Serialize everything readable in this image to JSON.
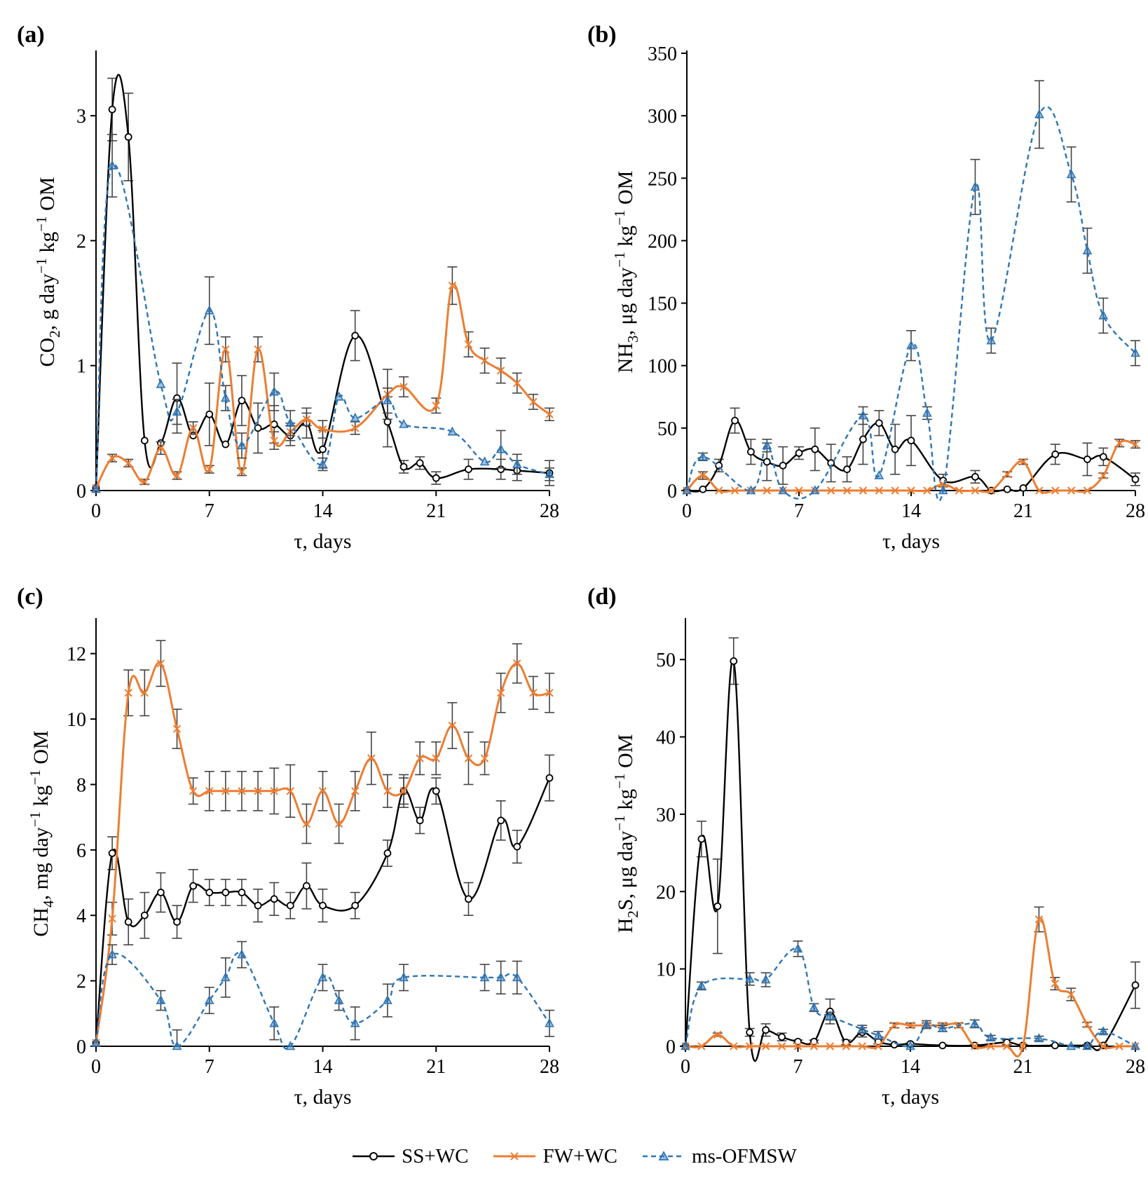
{
  "colors": {
    "ss_wc": "#000000",
    "fw_wc": "#ED7D31",
    "ms": "#2E75B6",
    "errbar": "#444444",
    "axis": "#000000"
  },
  "legend": [
    {
      "key": "ss",
      "label": "SS+WC"
    },
    {
      "key": "fw",
      "label": "FW+WC"
    },
    {
      "key": "ms",
      "label": "ms-OFMSW"
    }
  ],
  "chart_data": [
    {
      "type": "line",
      "panel": "(a)",
      "ylabel_main": "CO",
      "ylabel_sub": "2",
      "ylabel_rest": ", g day",
      "ylabel_sup1": "−1",
      "ylabel_mid": " kg",
      "ylabel_sup2": "−1",
      "ylabel_end": " OM",
      "xlabel": "τ, days",
      "xlim": [
        0,
        28
      ],
      "xticks": [
        0,
        7,
        14,
        21,
        28
      ],
      "ylim": [
        0,
        3.5
      ],
      "yticks": [
        0,
        1,
        2,
        3
      ],
      "series": [
        {
          "name": "SS+WC",
          "x": [
            0,
            1,
            2,
            3,
            4,
            5,
            6,
            7,
            8,
            9,
            10,
            11,
            12,
            13,
            14,
            16,
            18,
            19,
            20,
            21,
            23,
            25,
            26,
            28
          ],
          "y": [
            0.02,
            3.05,
            2.83,
            0.4,
            0.38,
            0.74,
            0.44,
            0.61,
            0.37,
            0.72,
            0.5,
            0.53,
            0.44,
            0.54,
            0.33,
            1.24,
            0.55,
            0.19,
            0.22,
            0.1,
            0.17,
            0.17,
            0.16,
            0.14
          ],
          "err": [
            0,
            0.25,
            0.35,
            0,
            0,
            0.28,
            0,
            0.25,
            0,
            0.2,
            0.2,
            0.15,
            0.08,
            0.12,
            0.15,
            0.2,
            0.2,
            0.05,
            0.05,
            0.05,
            0.08,
            0.08,
            0.08,
            0.1
          ]
        },
        {
          "name": "FW+WC",
          "x": [
            0,
            1,
            2,
            3,
            4,
            5,
            6,
            7,
            8,
            9,
            10,
            11,
            12,
            13,
            14,
            16,
            18,
            19,
            21,
            22,
            23,
            24,
            25,
            26,
            27,
            28
          ],
          "y": [
            0.02,
            0.26,
            0.22,
            0.07,
            0.34,
            0.12,
            0.5,
            0.17,
            1.13,
            0.15,
            1.13,
            0.4,
            0.47,
            0.57,
            0.49,
            0.5,
            0.77,
            0.83,
            0.68,
            1.64,
            1.17,
            1.04,
            0.96,
            0.86,
            0.71,
            0.61
          ],
          "err": [
            0,
            0.03,
            0.03,
            0.02,
            0.05,
            0.03,
            0.05,
            0.03,
            0.1,
            0.03,
            0.1,
            0.07,
            0.07,
            0.05,
            0.07,
            0.05,
            0.2,
            0.08,
            0.06,
            0.15,
            0.1,
            0.1,
            0.1,
            0.08,
            0.06,
            0.05
          ]
        },
        {
          "name": "ms-OFMSW",
          "x": [
            0,
            1,
            4,
            5,
            7,
            8,
            9,
            11,
            12,
            14,
            15,
            16,
            18,
            19,
            22,
            24,
            25,
            26,
            28
          ],
          "y": [
            0.01,
            2.6,
            0.85,
            0.63,
            1.44,
            0.74,
            0.36,
            0.79,
            0.54,
            0.21,
            0.75,
            0.58,
            0.72,
            0.53,
            0.47,
            0.23,
            0.33,
            0.21,
            0.13
          ],
          "err": [
            0,
            0.25,
            0,
            0.1,
            0.27,
            0.1,
            0.1,
            0.15,
            0.1,
            0.05,
            0,
            0,
            0.1,
            0,
            0,
            0,
            0.15,
            0.08,
            0.05
          ]
        }
      ]
    },
    {
      "type": "line",
      "panel": "(b)",
      "ylabel_main": "NH",
      "ylabel_sub": "3",
      "ylabel_rest": ", μg day",
      "ylabel_sup1": "−1",
      "ylabel_mid": " kg",
      "ylabel_sup2": "−1",
      "ylabel_end": " OM",
      "xlabel": "τ, days",
      "xlim": [
        0,
        28
      ],
      "xticks": [
        0,
        7,
        14,
        21,
        28
      ],
      "ylim": [
        0,
        350
      ],
      "yticks": [
        0,
        50,
        100,
        150,
        200,
        250,
        300,
        350
      ],
      "series": [
        {
          "name": "SS+WC",
          "x": [
            0,
            1,
            2,
            3,
            4,
            5,
            6,
            7,
            8,
            9,
            10,
            11,
            12,
            13,
            14,
            16,
            18,
            19,
            20,
            21,
            23,
            25,
            26,
            28
          ],
          "y": [
            0,
            1,
            20,
            56,
            31,
            23,
            20,
            30,
            33,
            22,
            17,
            41,
            54,
            33,
            40,
            8,
            11,
            0,
            1,
            2,
            29,
            25,
            27,
            9
          ],
          "err": [
            0,
            0,
            5,
            10,
            10,
            15,
            15,
            5,
            17,
            15,
            10,
            20,
            10,
            20,
            20,
            5,
            5,
            0,
            0,
            0,
            8,
            13,
            7,
            5
          ]
        },
        {
          "name": "FW+WC",
          "x": [
            0,
            1,
            2,
            3,
            4,
            5,
            6,
            7,
            8,
            9,
            10,
            11,
            12,
            13,
            14,
            15,
            16,
            17,
            18,
            19,
            20,
            21,
            22,
            23,
            24,
            25,
            26,
            27,
            28
          ],
          "y": [
            0,
            12,
            0,
            0,
            0,
            0,
            0,
            0,
            0,
            0,
            0,
            0,
            0,
            0,
            0,
            0,
            5,
            0,
            0,
            0,
            13,
            23,
            0,
            0,
            0,
            0,
            12,
            38,
            37
          ],
          "err": [
            0,
            3,
            0,
            0,
            0,
            0,
            0,
            0,
            0,
            0,
            0,
            0,
            0,
            0,
            0,
            0,
            0,
            0,
            0,
            0,
            2,
            2,
            0,
            0,
            0,
            0,
            2,
            3,
            3
          ]
        },
        {
          "name": "ms-OFMSW",
          "x": [
            0,
            1,
            4,
            5,
            6,
            8,
            11,
            12,
            14,
            15,
            16,
            18,
            19,
            22,
            24,
            25,
            26,
            28
          ],
          "y": [
            0,
            27,
            0,
            36,
            0,
            0,
            60,
            12,
            116,
            62,
            0,
            243,
            120,
            301,
            253,
            192,
            140,
            110
          ],
          "err": [
            0,
            3,
            0,
            5,
            0,
            0,
            7,
            0,
            12,
            5,
            0,
            22,
            10,
            27,
            22,
            18,
            14,
            10
          ]
        }
      ]
    },
    {
      "type": "line",
      "panel": "(c)",
      "ylabel_main": "CH",
      "ylabel_sub": "4",
      "ylabel_rest": ", mg day",
      "ylabel_sup1": "−1",
      "ylabel_mid": " kg",
      "ylabel_sup2": "−1",
      "ylabel_end": " OM",
      "xlabel": "τ, days",
      "xlim": [
        0,
        28
      ],
      "xticks": [
        0,
        7,
        14,
        21,
        28
      ],
      "ylim": [
        0,
        13
      ],
      "yticks": [
        0,
        2,
        4,
        6,
        8,
        10,
        12
      ],
      "series": [
        {
          "name": "SS+WC",
          "x": [
            0,
            1,
            2,
            3,
            4,
            5,
            6,
            7,
            8,
            9,
            10,
            11,
            12,
            13,
            14,
            16,
            18,
            19,
            20,
            21,
            23,
            25,
            26,
            28
          ],
          "y": [
            0.1,
            5.9,
            3.8,
            4.0,
            4.7,
            3.8,
            4.9,
            4.7,
            4.7,
            4.7,
            4.3,
            4.5,
            4.3,
            4.9,
            4.3,
            4.3,
            5.9,
            7.8,
            6.9,
            7.8,
            4.5,
            6.9,
            6.1,
            8.2
          ],
          "err": [
            0,
            0.5,
            0.7,
            0.7,
            0.6,
            0.5,
            0.5,
            0.4,
            0.4,
            0.4,
            0.5,
            0.5,
            0.4,
            0.7,
            0.5,
            0.4,
            0.4,
            0.4,
            0.4,
            0.4,
            0.5,
            0.6,
            0.5,
            0.7
          ]
        },
        {
          "name": "FW+WC",
          "x": [
            0,
            1,
            2,
            3,
            4,
            5,
            6,
            7,
            8,
            9,
            10,
            11,
            12,
            13,
            14,
            15,
            16,
            17,
            18,
            19,
            20,
            21,
            22,
            23,
            24,
            25,
            26,
            27,
            28
          ],
          "y": [
            0.1,
            3.9,
            10.8,
            10.8,
            11.7,
            9.7,
            7.8,
            7.8,
            7.8,
            7.8,
            7.8,
            7.8,
            7.8,
            6.8,
            7.8,
            6.8,
            7.8,
            8.8,
            7.8,
            7.8,
            8.8,
            8.8,
            9.8,
            8.8,
            8.8,
            10.8,
            11.7,
            10.8,
            10.8
          ],
          "err": [
            0,
            0.5,
            0.7,
            0.7,
            0.7,
            0.6,
            0.4,
            0.6,
            0.6,
            0.6,
            0.6,
            0.7,
            0.8,
            0.6,
            0.6,
            0.6,
            0.6,
            0.8,
            0.5,
            0.5,
            0.5,
            0.5,
            0.7,
            0.8,
            0.5,
            0.6,
            0.6,
            0.5,
            0.6
          ]
        },
        {
          "name": "ms-OFMSW",
          "x": [
            0,
            1,
            4,
            5,
            7,
            8,
            9,
            11,
            12,
            14,
            15,
            16,
            18,
            19,
            24,
            25,
            26,
            28
          ],
          "y": [
            0.1,
            2.8,
            1.4,
            0.0,
            1.4,
            2.1,
            2.8,
            0.7,
            0.0,
            2.1,
            1.4,
            0.7,
            1.4,
            2.1,
            2.1,
            2.1,
            2.1,
            0.7
          ],
          "err": [
            0,
            0.3,
            0.3,
            0.5,
            0.4,
            0.6,
            0.4,
            0.5,
            0,
            0.4,
            0.3,
            0.5,
            0.5,
            0.4,
            0.4,
            0.5,
            0.5,
            0.4
          ]
        }
      ]
    },
    {
      "type": "line",
      "panel": "(d)",
      "ylabel_main": "H",
      "ylabel_sub": "2",
      "ylabel_rest": "S, μg day",
      "ylabel_sup1": "−1",
      "ylabel_mid": " kg",
      "ylabel_sup2": "−1",
      "ylabel_end": " OM",
      "xlabel": "τ, days",
      "xlim": [
        0,
        28
      ],
      "xticks": [
        0,
        7,
        14,
        21,
        28
      ],
      "ylim": [
        0,
        55
      ],
      "yticks": [
        0,
        10,
        20,
        30,
        40,
        50
      ],
      "series": [
        {
          "name": "SS+WC",
          "x": [
            0,
            1,
            2,
            3,
            4,
            5,
            6,
            7,
            8,
            9,
            10,
            11,
            12,
            13,
            14,
            16,
            18,
            20,
            21,
            23,
            25,
            26,
            28
          ],
          "y": [
            0,
            26.8,
            18.1,
            49.8,
            1.8,
            2.1,
            1.2,
            0.6,
            0.6,
            4.5,
            0.5,
            1.8,
            0.6,
            0.2,
            0.3,
            0.1,
            0.1,
            0.5,
            0.1,
            0.1,
            0.1,
            0.1,
            7.9
          ],
          "err": [
            0,
            2.3,
            6.1,
            3,
            0.5,
            0.8,
            0.5,
            0.2,
            0.2,
            1.6,
            0.3,
            0.6,
            0.3,
            0.1,
            0.1,
            0.1,
            0.1,
            0.3,
            0.1,
            0.1,
            0.1,
            0.1,
            3
          ]
        },
        {
          "name": "FW+WC",
          "x": [
            0,
            1,
            2,
            3,
            4,
            5,
            6,
            7,
            8,
            9,
            10,
            11,
            12,
            13,
            14,
            15,
            16,
            17,
            18,
            19,
            20,
            21,
            22,
            23,
            24,
            25,
            26,
            27,
            28
          ],
          "y": [
            0,
            0,
            1.5,
            0,
            0,
            0,
            0,
            0,
            0,
            0,
            0,
            0,
            0,
            2.7,
            2.7,
            2.7,
            2.7,
            2.7,
            0,
            0,
            0,
            0,
            16.4,
            8.1,
            6.7,
            2.8,
            0,
            0,
            0
          ],
          "err": [
            0,
            0,
            0.2,
            0,
            0,
            0,
            0,
            0,
            0,
            0,
            0,
            0,
            0,
            0.3,
            0.3,
            0.3,
            0.3,
            0.3,
            0,
            0,
            0,
            0,
            1.6,
            0.8,
            0.8,
            0.3,
            0,
            0,
            0
          ]
        },
        {
          "name": "ms-OFMSW",
          "x": [
            0,
            1,
            4,
            5,
            7,
            8,
            9,
            11,
            12,
            14,
            15,
            16,
            18,
            19,
            22,
            24,
            25,
            26,
            28
          ],
          "y": [
            0,
            7.8,
            8.7,
            8.6,
            12.6,
            5.0,
            3.9,
            2.2,
            1.4,
            0.0,
            2.8,
            2.3,
            2.9,
            1.1,
            1.0,
            0.0,
            0.0,
            1.9,
            0.0
          ],
          "err": [
            0,
            0.5,
            0.8,
            0.9,
            1,
            0.5,
            0.5,
            0.5,
            0.5,
            0,
            0.5,
            0.4,
            0.5,
            0.3,
            0.3,
            0,
            0.2,
            0.3,
            0
          ]
        }
      ]
    }
  ]
}
